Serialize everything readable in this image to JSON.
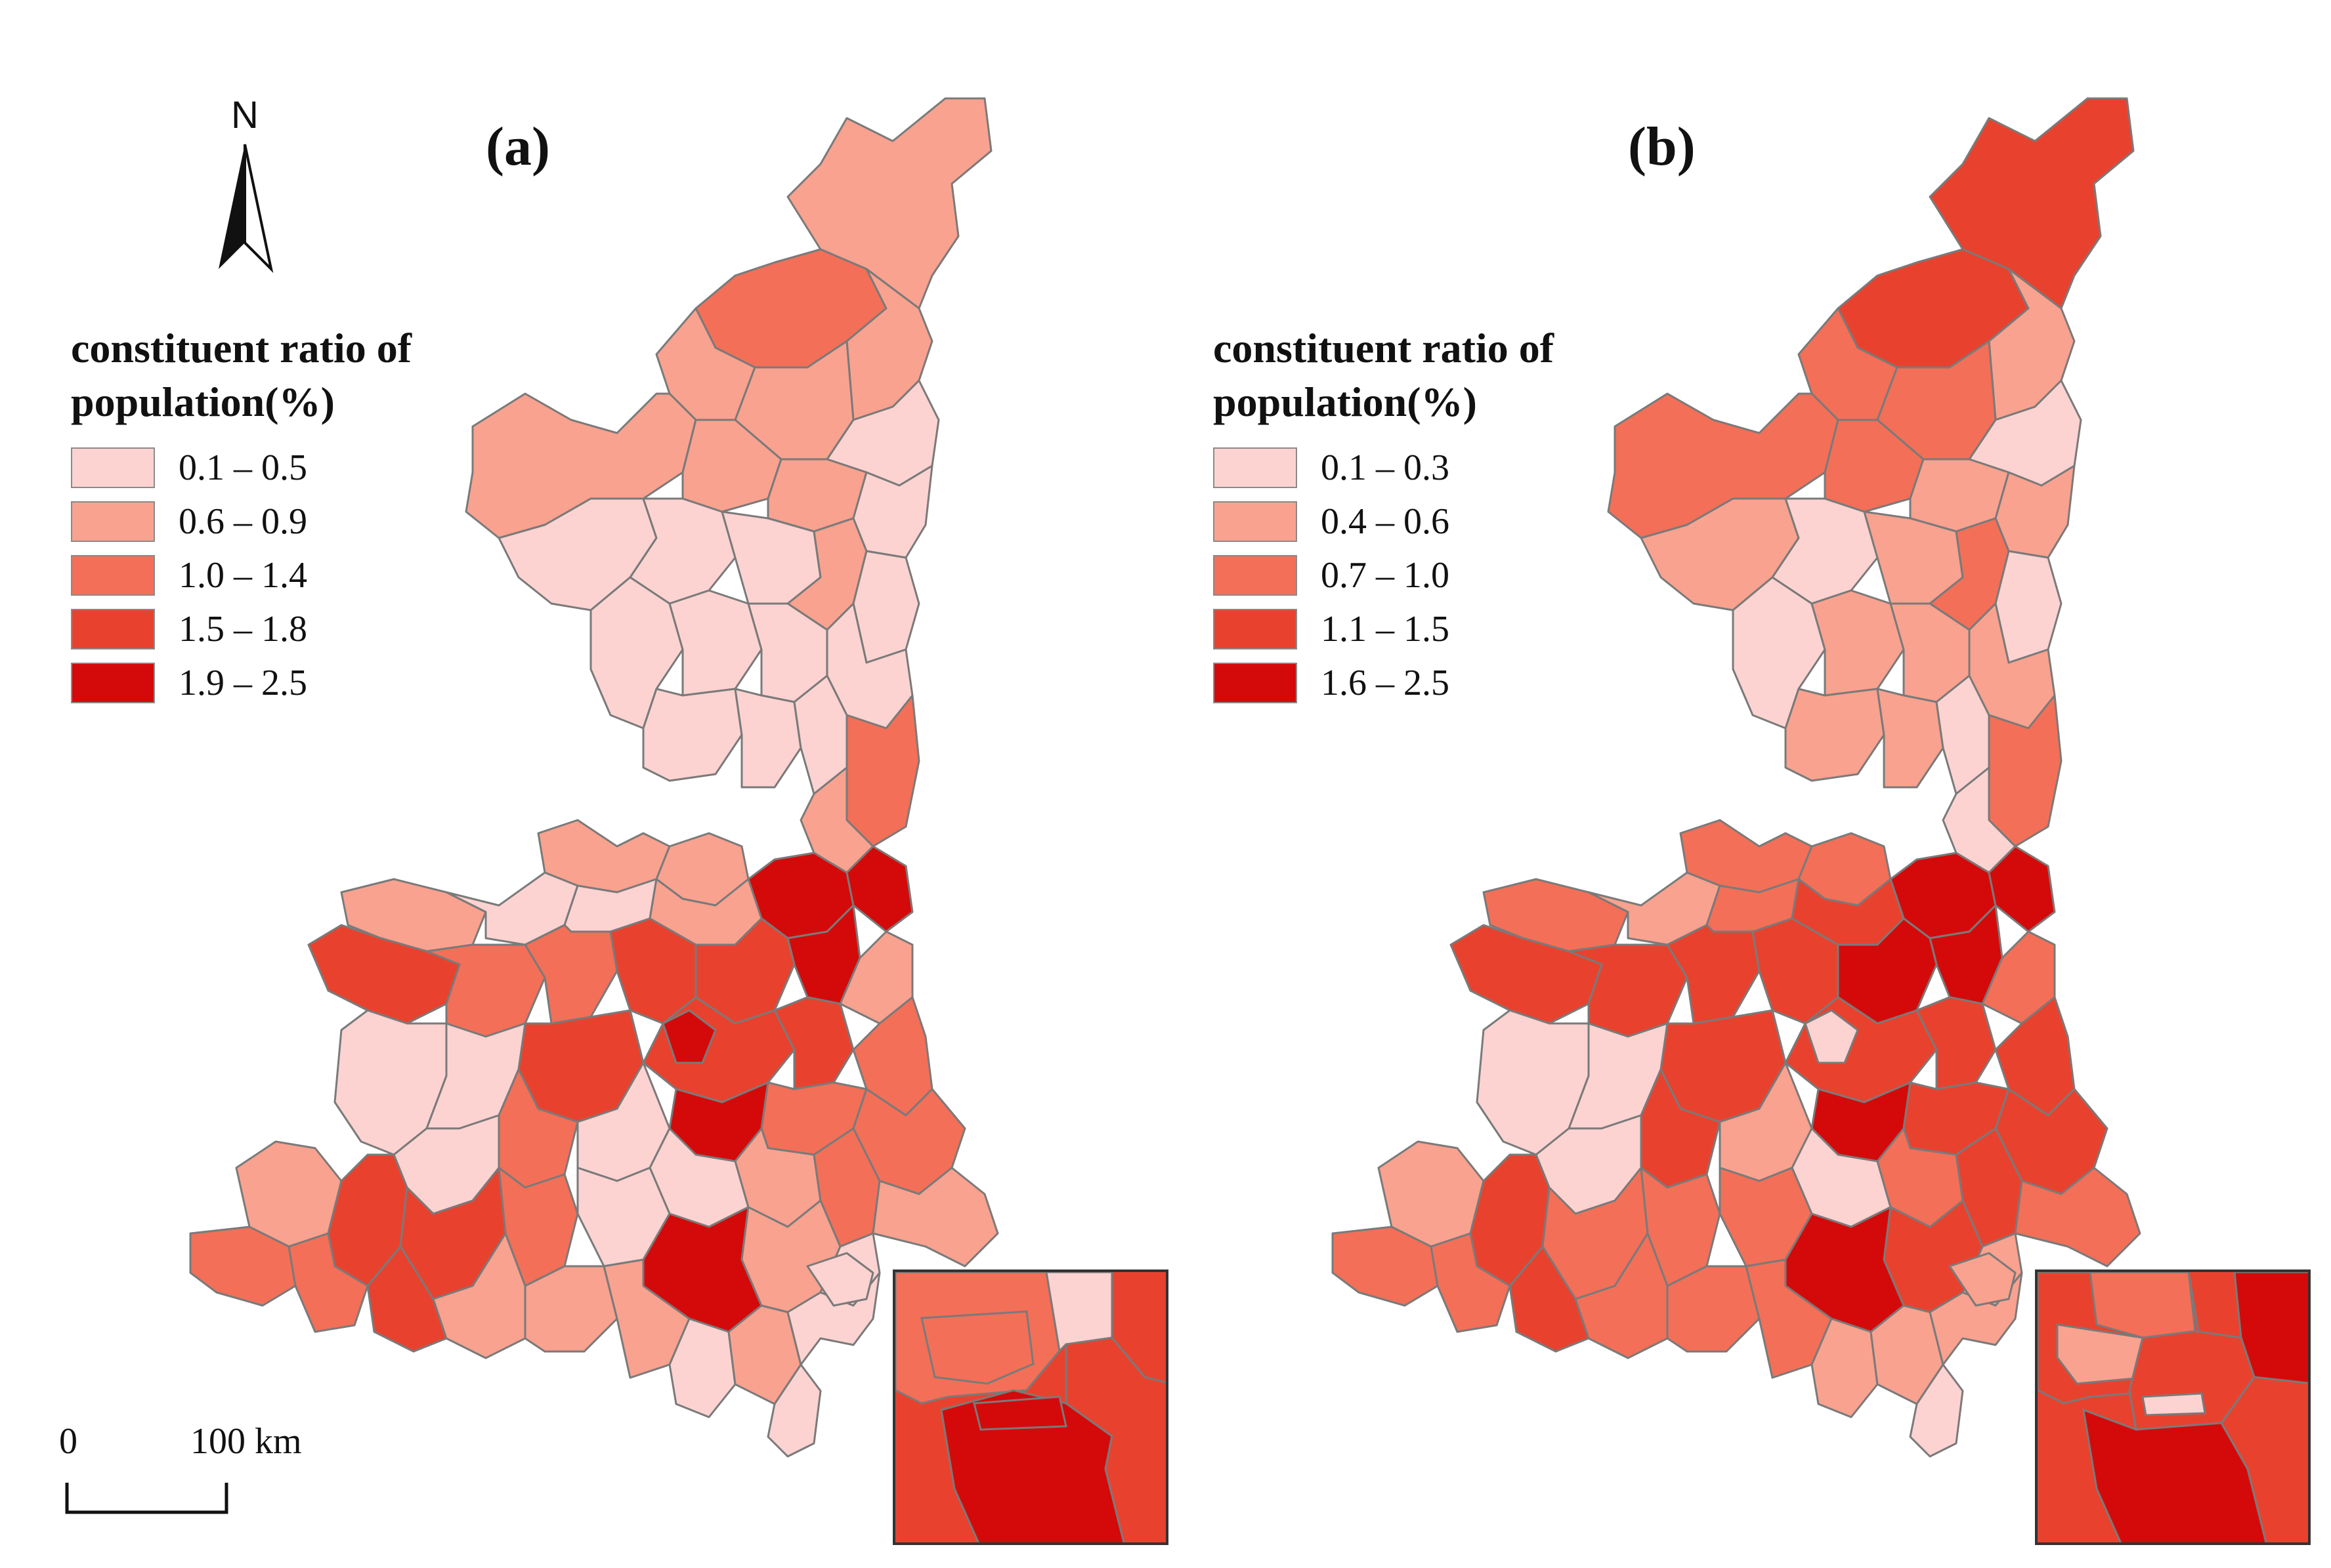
{
  "figure": {
    "panels": [
      {
        "id": "a",
        "label": "(a)",
        "legend": {
          "title": "constituent ratio of population(%)",
          "items": [
            {
              "label": "0.1 – 0.5",
              "color": "#fcd3d1"
            },
            {
              "label": "0.6 – 0.9",
              "color": "#f9a28f"
            },
            {
              "label": "1.0 – 1.4",
              "color": "#f36f58"
            },
            {
              "label": "1.5 – 1.8",
              "color": "#e8422f"
            },
            {
              "label": "1.9 – 2.5",
              "color": "#d40a0a"
            }
          ]
        }
      },
      {
        "id": "b",
        "label": "(b)",
        "legend": {
          "title": "constituent ratio of population(%)",
          "items": [
            {
              "label": "0.1 – 0.3",
              "color": "#fcd3d1"
            },
            {
              "label": "0.4 – 0.6",
              "color": "#f9a28f"
            },
            {
              "label": "0.7 – 1.0",
              "color": "#f36f58"
            },
            {
              "label": "1.1 – 1.5",
              "color": "#e8422f"
            },
            {
              "label": "1.6 – 2.5",
              "color": "#d40a0a"
            }
          ]
        }
      }
    ],
    "north_label": "N",
    "scale": {
      "zero": "0",
      "distance": "100 km"
    },
    "border_color": "#7a7a7a"
  }
}
